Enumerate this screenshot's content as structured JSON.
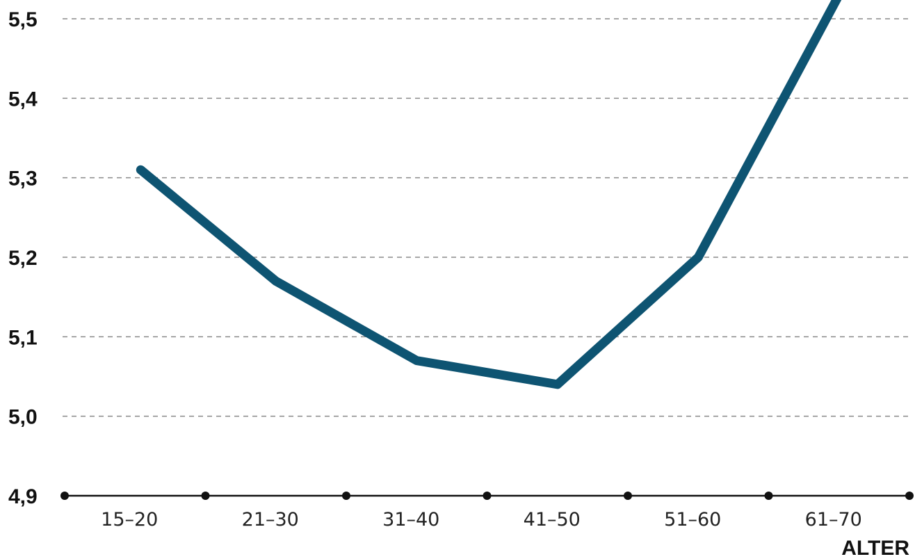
{
  "chart_data": {
    "type": "line",
    "categories": [
      "15–20",
      "21–30",
      "31–40",
      "41–50",
      "51–60",
      "61–70"
    ],
    "series": [
      {
        "values": [
          5.31,
          5.17,
          5.07,
          5.04,
          5.2,
          5.53
        ]
      }
    ],
    "y_ticks": [
      "4,9",
      "5,0",
      "5,1",
      "5,2",
      "5,3",
      "5,4",
      "5,5"
    ],
    "xlabel": "ALTER",
    "ylabel": "",
    "ylim": [
      4.9,
      5.5
    ],
    "grid": true,
    "colors": {
      "line": "#0e5472",
      "axis": "#111111",
      "grid": "#8a8a8a"
    }
  }
}
